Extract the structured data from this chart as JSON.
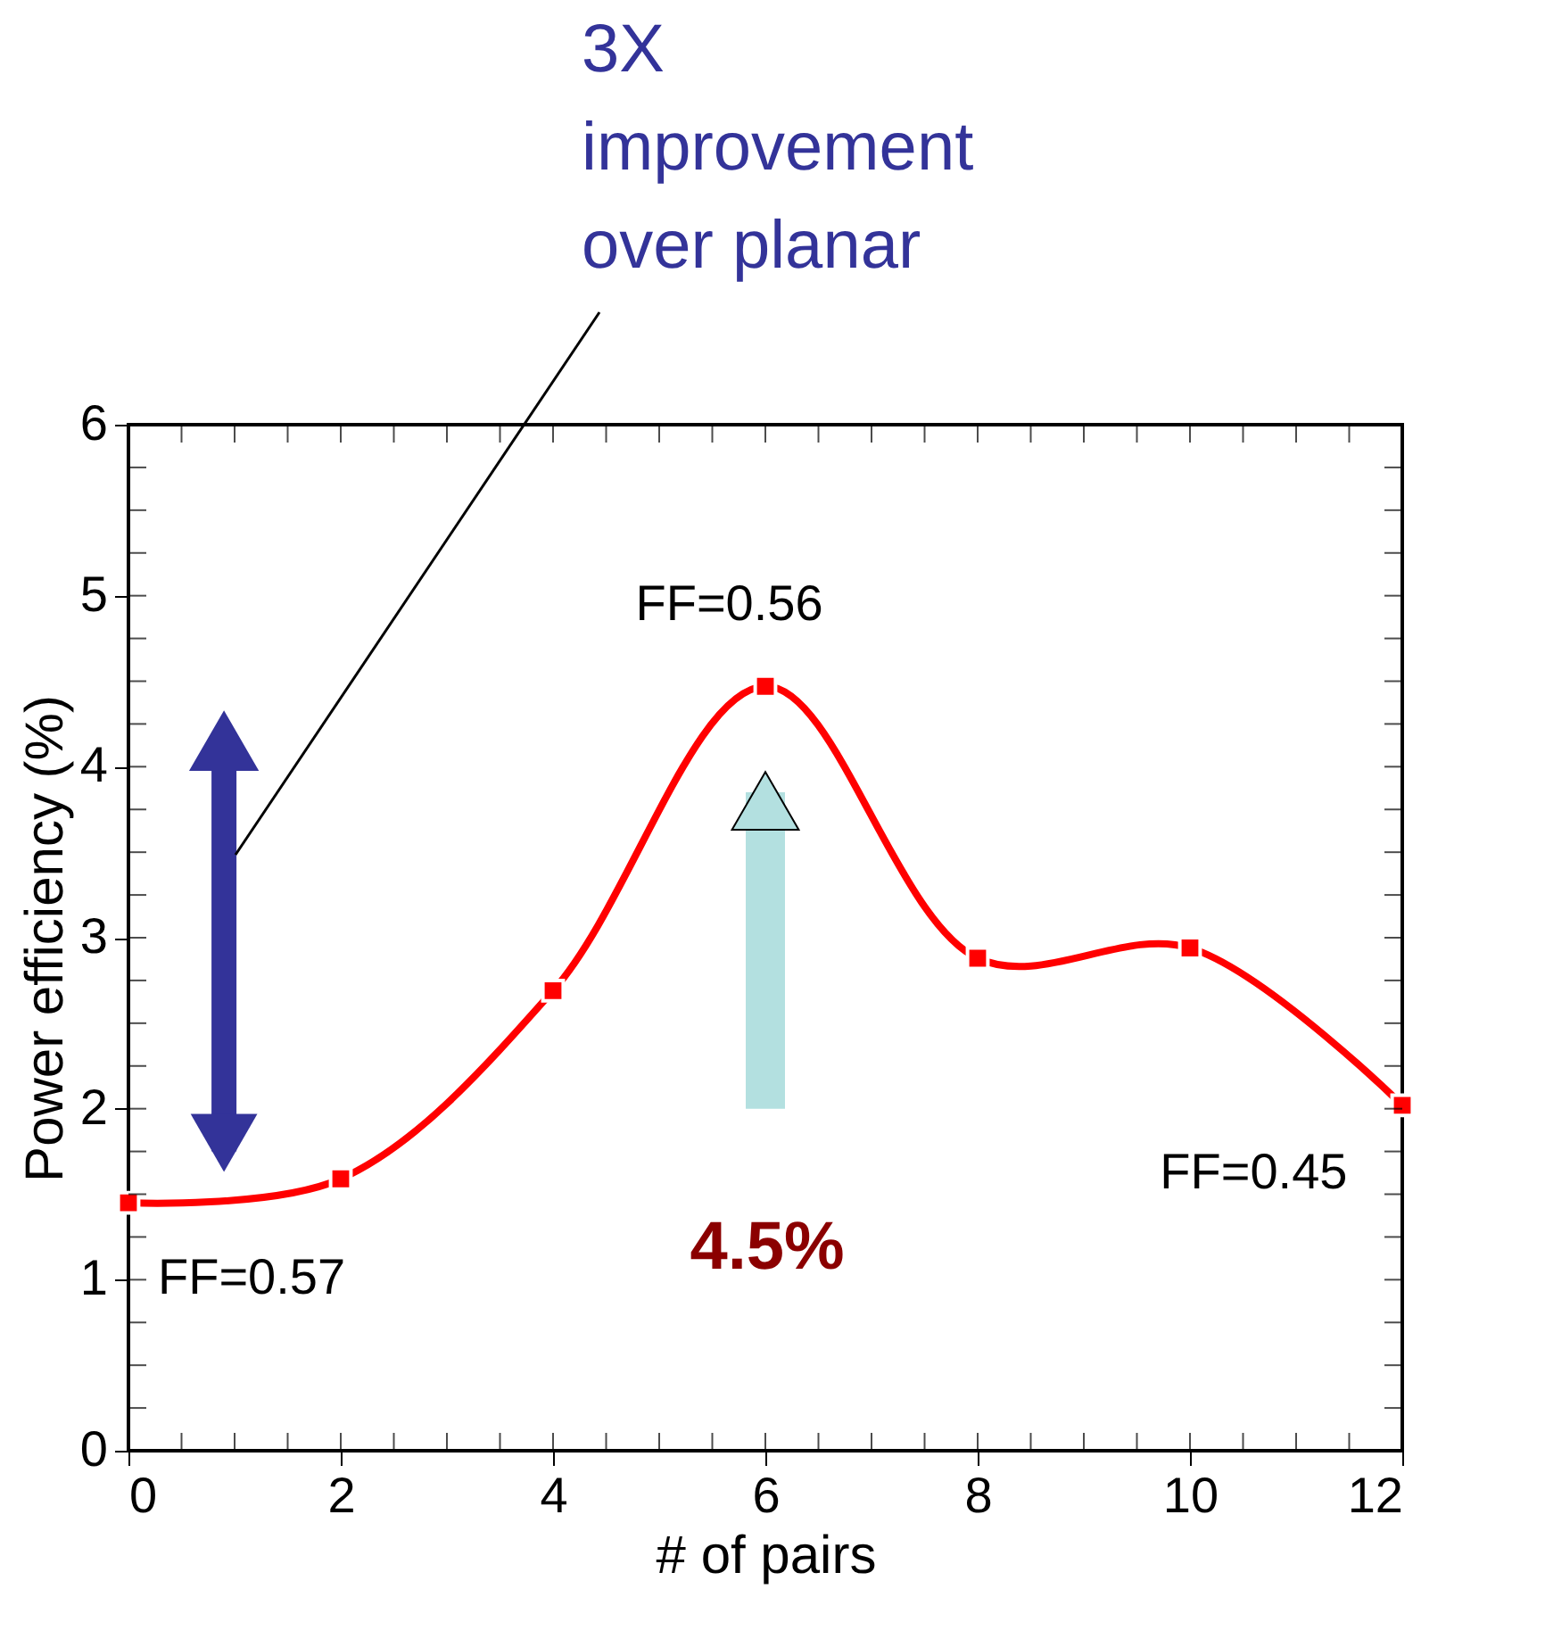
{
  "chart_data": {
    "type": "line",
    "xlabel": "# of pairs",
    "ylabel": "Power efficiency (%)",
    "x": [
      0,
      2,
      4,
      6,
      8,
      10,
      12
    ],
    "series": [
      {
        "color": "#ff0000",
        "values": [
          1.45,
          1.59,
          2.69,
          4.47,
          2.88,
          2.94,
          2.02
        ]
      }
    ],
    "marker": "square",
    "line_style": "solid",
    "grid": false,
    "xlim": [
      0,
      12
    ],
    "xticks": [
      0,
      2,
      4,
      6,
      8,
      10,
      12
    ],
    "ylim": [
      0,
      6
    ],
    "yticks": [
      0,
      1,
      2,
      3,
      4,
      5,
      6
    ],
    "annotations": [
      {
        "text": "FF=0.56",
        "x": 6,
        "y": 4.47
      },
      {
        "text": "FF=0.57",
        "x": 0,
        "y": 1.45
      },
      {
        "text": "FF=0.45",
        "x": 12,
        "y": 2.02
      },
      "4.5%",
      "3X\nimprovement\nover planar"
    ]
  }
}
